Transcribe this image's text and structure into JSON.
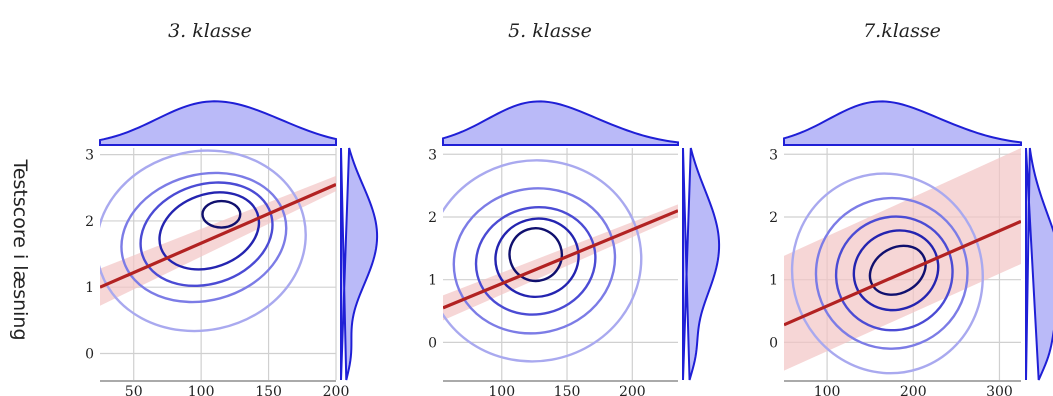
{
  "colors": {
    "kde_fill": "#b3b3f7",
    "kde_line": "#1f1fd6",
    "regression": "#b22222",
    "ci_band": "#f2c4c4",
    "contour_levels": [
      "#a9a9ef",
      "#7c7ce6",
      "#4b4bd4",
      "#2424b0",
      "#10106e"
    ]
  },
  "chart_data": [
    {
      "type": "scatter",
      "title": "3. klasse",
      "ylabel": "Testscore i læsning",
      "xlim": [
        25,
        200
      ],
      "ylim": [
        -0.4,
        3.1
      ],
      "xticks": [
        50,
        100,
        150,
        200
      ],
      "yticks": [
        0,
        1,
        2,
        3
      ],
      "regression": {
        "x": [
          25,
          200
        ],
        "y": [
          1.0,
          2.55
        ],
        "ci_low": [
          0.72,
          2.45
        ],
        "ci_high": [
          1.28,
          2.68
        ]
      },
      "contours": [
        {
          "cx": 100,
          "cy": 1.7,
          "rx": 78,
          "ry": 1.35,
          "rot": -12
        },
        {
          "cx": 102,
          "cy": 1.75,
          "rx": 62,
          "ry": 0.95,
          "rot": -15
        },
        {
          "cx": 104,
          "cy": 1.8,
          "rx": 50,
          "ry": 0.75,
          "rot": -18
        },
        {
          "cx": 106,
          "cy": 1.85,
          "rx": 38,
          "ry": 0.55,
          "rot": -20
        },
        {
          "cx": 115,
          "cy": 2.1,
          "rx": 14,
          "ry": 0.2,
          "rot": 0
        }
      ]
    },
    {
      "type": "scatter",
      "title": "5. klasse",
      "xlim": [
        55,
        235
      ],
      "ylim": [
        -0.6,
        3.1
      ],
      "xticks": [
        100,
        150,
        200
      ],
      "yticks": [
        0,
        1,
        2,
        3
      ],
      "regression": {
        "x": [
          55,
          235
        ],
        "y": [
          0.55,
          2.1
        ],
        "ci_low": [
          0.35,
          2.0
        ],
        "ci_high": [
          0.75,
          2.2
        ]
      },
      "contours": [
        {
          "cx": 125,
          "cy": 1.3,
          "rx": 82,
          "ry": 1.6,
          "rot": -10
        },
        {
          "cx": 125,
          "cy": 1.3,
          "rx": 62,
          "ry": 1.15,
          "rot": -12
        },
        {
          "cx": 126,
          "cy": 1.3,
          "rx": 46,
          "ry": 0.85,
          "rot": -14
        },
        {
          "cx": 127,
          "cy": 1.35,
          "rx": 32,
          "ry": 0.62,
          "rot": -16
        },
        {
          "cx": 126,
          "cy": 1.4,
          "rx": 20,
          "ry": 0.42,
          "rot": -18
        }
      ]
    },
    {
      "type": "scatter",
      "title": "7.klasse",
      "xlim": [
        50,
        325
      ],
      "ylim": [
        -0.6,
        3.1
      ],
      "xticks": [
        100,
        200,
        300
      ],
      "yticks": [
        0,
        1,
        2,
        3
      ],
      "regression": {
        "x": [
          50,
          325
        ],
        "y": [
          0.28,
          1.93
        ],
        "ci_low": [
          -0.45,
          1.25
        ],
        "ci_high": [
          1.38,
          3.1
        ]
      },
      "contours": [
        {
          "cx": 170,
          "cy": 1.1,
          "rx": 110,
          "ry": 1.6,
          "rot": -18
        },
        {
          "cx": 175,
          "cy": 1.1,
          "rx": 88,
          "ry": 1.2,
          "rot": -22
        },
        {
          "cx": 178,
          "cy": 1.1,
          "rx": 68,
          "ry": 0.9,
          "rot": -25
        },
        {
          "cx": 180,
          "cy": 1.15,
          "rx": 50,
          "ry": 0.62,
          "rot": -28
        },
        {
          "cx": 182,
          "cy": 1.15,
          "rx": 34,
          "ry": 0.36,
          "rot": -30
        }
      ]
    }
  ]
}
